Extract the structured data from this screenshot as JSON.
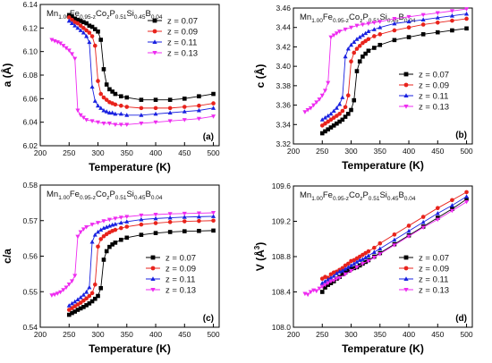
{
  "figure": {
    "series_colors": [
      "#000000",
      "#e8231c",
      "#1a22e0",
      "#ee2cf0"
    ],
    "series_markers": [
      "square",
      "circle",
      "triangle-up",
      "triangle-down"
    ]
  },
  "chart_data": [
    {
      "type": "line",
      "panel": "(a)",
      "annotation": "Mn1.00Fe0.95-zCozP0.51Si0.45B0.04",
      "xlabel": "Temperature (K)",
      "ylabel": "a (Å)",
      "xlim": [
        200,
        510
      ],
      "ylim": [
        6.02,
        6.14
      ],
      "xticks": [
        "200",
        "250",
        "300",
        "350",
        "400",
        "450",
        "500"
      ],
      "yticks": [
        "6.02",
        "6.04",
        "6.06",
        "6.08",
        "6.10",
        "6.12",
        "6.14"
      ],
      "legend_position": "top-right",
      "series": [
        {
          "name": "z = 0.07",
          "x": [
            250,
            255,
            260,
            265,
            270,
            275,
            280,
            285,
            290,
            295,
            300,
            305,
            310,
            315,
            320,
            325,
            330,
            340,
            350,
            375,
            400,
            425,
            450,
            475,
            500
          ],
          "y": [
            6.131,
            6.13,
            6.128,
            6.127,
            6.126,
            6.125,
            6.124,
            6.122,
            6.121,
            6.119,
            6.117,
            6.11,
            6.085,
            6.072,
            6.068,
            6.066,
            6.064,
            6.062,
            6.061,
            6.059,
            6.059,
            6.059,
            6.06,
            6.062,
            6.064
          ]
        },
        {
          "name": "z = 0.09",
          "x": [
            250,
            255,
            260,
            265,
            270,
            275,
            280,
            285,
            290,
            295,
            300,
            305,
            310,
            315,
            320,
            325,
            330,
            340,
            350,
            375,
            400,
            425,
            450,
            475,
            500
          ],
          "y": [
            6.129,
            6.127,
            6.125,
            6.124,
            6.122,
            6.12,
            6.118,
            6.116,
            6.113,
            6.105,
            6.075,
            6.064,
            6.061,
            6.059,
            6.057,
            6.056,
            6.055,
            6.054,
            6.053,
            6.052,
            6.052,
            6.052,
            6.053,
            6.054,
            6.056
          ]
        },
        {
          "name": "z = 0.11",
          "x": [
            250,
            255,
            260,
            265,
            270,
            275,
            280,
            285,
            290,
            295,
            300,
            305,
            310,
            315,
            320,
            325,
            330,
            340,
            350,
            375,
            400,
            425,
            450,
            475,
            500
          ],
          "y": [
            6.126,
            6.124,
            6.122,
            6.12,
            6.118,
            6.116,
            6.113,
            6.108,
            6.07,
            6.058,
            6.054,
            6.052,
            6.05,
            6.049,
            6.048,
            6.048,
            6.047,
            6.047,
            6.046,
            6.046,
            6.047,
            6.048,
            6.049,
            6.05,
            6.052
          ]
        },
        {
          "name": "z = 0.13",
          "x": [
            220,
            225,
            230,
            235,
            240,
            245,
            250,
            255,
            260,
            265,
            270,
            275,
            280,
            290,
            300,
            310,
            320,
            330,
            340,
            350,
            375,
            400,
            425,
            450,
            475,
            500
          ],
          "y": [
            6.11,
            6.109,
            6.108,
            6.107,
            6.105,
            6.103,
            6.101,
            6.098,
            6.094,
            6.05,
            6.046,
            6.044,
            6.042,
            6.041,
            6.04,
            6.039,
            6.039,
            6.038,
            6.038,
            6.038,
            6.039,
            6.04,
            6.041,
            6.042,
            6.043,
            6.045
          ]
        }
      ]
    },
    {
      "type": "line",
      "panel": "(b)",
      "annotation": "Mn1.00Fe0.95-zCozP0.51Si0.45B0.04",
      "xlabel": "Temperature (K)",
      "ylabel": "c (Å)",
      "xlim": [
        200,
        510
      ],
      "ylim": [
        3.32,
        3.46
      ],
      "xticks": [
        "200",
        "250",
        "300",
        "350",
        "400",
        "450",
        "500"
      ],
      "yticks": [
        "3.32",
        "3.34",
        "3.36",
        "3.38",
        "3.40",
        "3.42",
        "3.44",
        "3.46"
      ],
      "legend_position": "bottom-right",
      "series": [
        {
          "name": "z = 0.07",
          "x": [
            250,
            255,
            260,
            265,
            270,
            275,
            280,
            285,
            290,
            295,
            300,
            305,
            310,
            315,
            320,
            325,
            330,
            340,
            350,
            375,
            400,
            425,
            450,
            475,
            500
          ],
          "y": [
            3.331,
            3.333,
            3.335,
            3.337,
            3.339,
            3.341,
            3.343,
            3.345,
            3.348,
            3.351,
            3.355,
            3.365,
            3.395,
            3.405,
            3.41,
            3.413,
            3.416,
            3.419,
            3.422,
            3.427,
            3.43,
            3.433,
            3.435,
            3.437,
            3.439
          ]
        },
        {
          "name": "z = 0.09",
          "x": [
            250,
            255,
            260,
            265,
            270,
            275,
            280,
            285,
            290,
            295,
            300,
            305,
            310,
            315,
            320,
            325,
            330,
            340,
            350,
            375,
            400,
            425,
            450,
            475,
            500
          ],
          "y": [
            3.339,
            3.341,
            3.343,
            3.345,
            3.347,
            3.349,
            3.351,
            3.354,
            3.358,
            3.37,
            3.405,
            3.414,
            3.418,
            3.421,
            3.424,
            3.426,
            3.428,
            3.431,
            3.433,
            3.437,
            3.44,
            3.443,
            3.445,
            3.447,
            3.449
          ]
        },
        {
          "name": "z = 0.11",
          "x": [
            250,
            255,
            260,
            265,
            270,
            275,
            280,
            285,
            290,
            295,
            300,
            305,
            310,
            315,
            320,
            325,
            330,
            340,
            350,
            375,
            400,
            425,
            450,
            475,
            500
          ],
          "y": [
            3.345,
            3.347,
            3.349,
            3.351,
            3.354,
            3.357,
            3.361,
            3.368,
            3.41,
            3.418,
            3.422,
            3.425,
            3.428,
            3.43,
            3.432,
            3.434,
            3.436,
            3.438,
            3.44,
            3.444,
            3.446,
            3.448,
            3.45,
            3.452,
            3.454
          ]
        },
        {
          "name": "z = 0.13",
          "x": [
            220,
            225,
            230,
            235,
            240,
            245,
            250,
            255,
            260,
            265,
            270,
            275,
            280,
            290,
            300,
            310,
            320,
            330,
            340,
            350,
            375,
            400,
            425,
            450,
            475,
            500
          ],
          "y": [
            3.353,
            3.355,
            3.357,
            3.36,
            3.363,
            3.366,
            3.37,
            3.375,
            3.383,
            3.43,
            3.432,
            3.434,
            3.436,
            3.438,
            3.44,
            3.442,
            3.443,
            3.444,
            3.445,
            3.446,
            3.449,
            3.451,
            3.453,
            3.455,
            3.457,
            3.459
          ]
        }
      ]
    },
    {
      "type": "line",
      "panel": "(c)",
      "annotation": "Mn1.00Fe0.95-zCozP0.51Si0.45B0.04",
      "xlabel": "Temperature (K)",
      "ylabel": "c/a",
      "xlim": [
        200,
        510
      ],
      "ylim": [
        0.54,
        0.58
      ],
      "xticks": [
        "200",
        "250",
        "300",
        "350",
        "400",
        "450",
        "500"
      ],
      "yticks": [
        "0.54",
        "0.55",
        "0.56",
        "0.57",
        "0.58"
      ],
      "legend_position": "bottom-right",
      "series": [
        {
          "name": "z = 0.07",
          "x": [
            250,
            255,
            260,
            265,
            270,
            275,
            280,
            285,
            290,
            295,
            300,
            305,
            310,
            315,
            320,
            325,
            330,
            340,
            350,
            375,
            400,
            425,
            450,
            475,
            500
          ],
          "y": [
            0.5435,
            0.544,
            0.5444,
            0.5449,
            0.5453,
            0.5457,
            0.5462,
            0.5467,
            0.5473,
            0.548,
            0.5488,
            0.551,
            0.559,
            0.5614,
            0.5626,
            0.5633,
            0.5638,
            0.5646,
            0.5652,
            0.566,
            0.5665,
            0.5668,
            0.567,
            0.5671,
            0.5672
          ]
        },
        {
          "name": "z = 0.09",
          "x": [
            250,
            255,
            260,
            265,
            270,
            275,
            280,
            285,
            290,
            295,
            300,
            305,
            310,
            315,
            320,
            325,
            330,
            340,
            350,
            375,
            400,
            425,
            450,
            475,
            500
          ],
          "y": [
            0.5449,
            0.5454,
            0.5459,
            0.5464,
            0.5469,
            0.5475,
            0.5481,
            0.5488,
            0.5496,
            0.552,
            0.5627,
            0.5648,
            0.5656,
            0.5662,
            0.5667,
            0.5671,
            0.5674,
            0.5679,
            0.5683,
            0.5689,
            0.5693,
            0.5696,
            0.5698,
            0.5699,
            0.57
          ]
        },
        {
          "name": "z = 0.11",
          "x": [
            250,
            255,
            260,
            265,
            270,
            275,
            280,
            285,
            290,
            295,
            300,
            305,
            310,
            315,
            320,
            325,
            330,
            340,
            350,
            375,
            400,
            425,
            450,
            475,
            500
          ],
          "y": [
            0.5461,
            0.5467,
            0.5472,
            0.5478,
            0.5484,
            0.5491,
            0.5499,
            0.5512,
            0.564,
            0.566,
            0.5668,
            0.5674,
            0.5679,
            0.5682,
            0.5685,
            0.5688,
            0.569,
            0.5694,
            0.5697,
            0.5703,
            0.5706,
            0.5708,
            0.571,
            0.5711,
            0.5712
          ]
        },
        {
          "name": "z = 0.13",
          "x": [
            220,
            225,
            230,
            235,
            240,
            245,
            250,
            255,
            260,
            265,
            270,
            275,
            280,
            290,
            300,
            310,
            320,
            330,
            340,
            350,
            375,
            400,
            425,
            450,
            475,
            500
          ],
          "y": [
            0.549,
            0.5492,
            0.5495,
            0.5499,
            0.5505,
            0.5512,
            0.5521,
            0.553,
            0.5545,
            0.5655,
            0.5668,
            0.5676,
            0.5682,
            0.5689,
            0.5694,
            0.5699,
            0.5703,
            0.5706,
            0.5709,
            0.5711,
            0.5715,
            0.5717,
            0.5719,
            0.572,
            0.5721,
            0.5722
          ]
        }
      ]
    },
    {
      "type": "line",
      "panel": "(d)",
      "annotation": "Mn1.00Fe0.95-zCozP0.51Si0.45B0.04",
      "xlabel": "Temperature (K)",
      "ylabel": "V (Å³)",
      "xlim": [
        200,
        510
      ],
      "ylim": [
        108.0,
        109.6
      ],
      "xticks": [
        "200",
        "250",
        "300",
        "350",
        "400",
        "450",
        "500"
      ],
      "yticks": [
        "108.0",
        "108.4",
        "108.8",
        "109.2",
        "109.6"
      ],
      "legend_position": "bottom-right",
      "series": [
        {
          "name": "z = 0.07",
          "x": [
            250,
            255,
            260,
            265,
            270,
            275,
            280,
            285,
            290,
            295,
            300,
            305,
            310,
            315,
            320,
            325,
            330,
            340,
            350,
            375,
            400,
            425,
            450,
            475,
            500
          ],
          "y": [
            108.4,
            108.45,
            108.48,
            108.5,
            108.52,
            108.55,
            108.57,
            108.6,
            108.62,
            108.64,
            108.66,
            108.67,
            108.68,
            108.7,
            108.72,
            108.74,
            108.76,
            108.8,
            108.84,
            108.94,
            109.04,
            109.14,
            109.24,
            109.34,
            109.45
          ]
        },
        {
          "name": "z = 0.09",
          "x": [
            250,
            255,
            260,
            265,
            270,
            275,
            280,
            285,
            290,
            295,
            300,
            305,
            310,
            315,
            320,
            325,
            330,
            340,
            350,
            375,
            400,
            425,
            450,
            475,
            500
          ],
          "y": [
            108.55,
            108.57,
            108.56,
            108.6,
            108.62,
            108.63,
            108.65,
            108.67,
            108.7,
            108.72,
            108.75,
            108.76,
            108.78,
            108.8,
            108.82,
            108.84,
            108.86,
            108.9,
            108.95,
            109.05,
            109.15,
            109.25,
            109.35,
            109.44,
            109.53
          ]
        },
        {
          "name": "z = 0.11",
          "x": [
            250,
            255,
            260,
            265,
            270,
            275,
            280,
            285,
            290,
            295,
            300,
            305,
            310,
            315,
            320,
            325,
            330,
            340,
            350,
            375,
            400,
            425,
            450,
            475,
            500
          ],
          "y": [
            108.5,
            108.52,
            108.54,
            108.56,
            108.58,
            108.61,
            108.63,
            108.64,
            108.66,
            108.68,
            108.7,
            108.72,
            108.74,
            108.76,
            108.77,
            108.79,
            108.81,
            108.85,
            108.89,
            108.99,
            109.09,
            109.19,
            109.29,
            109.38,
            109.48
          ]
        },
        {
          "name": "z = 0.13",
          "x": [
            220,
            225,
            230,
            235,
            240,
            245,
            250,
            255,
            260,
            265,
            270,
            275,
            280,
            290,
            300,
            310,
            320,
            330,
            340,
            350,
            375,
            400,
            425,
            450,
            475,
            500
          ],
          "y": [
            108.38,
            108.37,
            108.4,
            108.42,
            108.41,
            108.44,
            108.46,
            108.48,
            108.5,
            108.52,
            108.53,
            108.55,
            108.56,
            108.6,
            108.64,
            108.68,
            108.72,
            108.75,
            108.79,
            108.83,
            108.93,
            109.03,
            109.13,
            109.22,
            109.32,
            109.42
          ]
        }
      ]
    }
  ]
}
